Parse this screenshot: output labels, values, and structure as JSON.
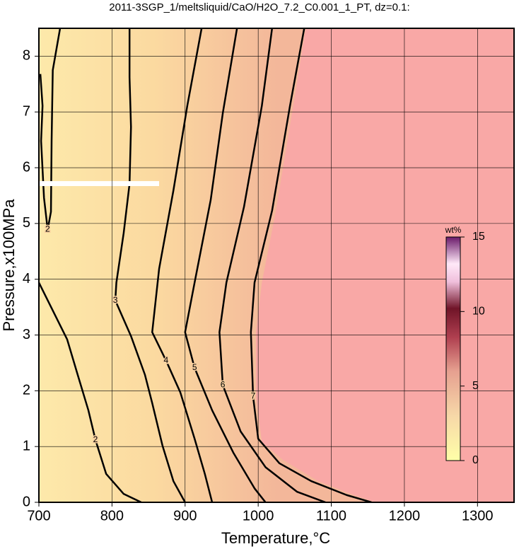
{
  "chart_data": {
    "type": "contour",
    "title": "2011-3SGP_1/meltsliquid/CaO/H2O_7.2_C0.001_1_PT, dz=0.1:",
    "xlabel": "Temperature,°C",
    "ylabel": "Pressure,x100MPa",
    "xlim": [
      700,
      1350
    ],
    "ylim": [
      0,
      8.5
    ],
    "xticks": [
      700,
      800,
      900,
      1000,
      1100,
      1200,
      1300
    ],
    "yticks": [
      0,
      1,
      2,
      3,
      4,
      5,
      6,
      7,
      8
    ],
    "grid": true,
    "line_color": "#000000",
    "fill_color": "#f9a8a6",
    "colorbar": {
      "label": "wt%",
      "lim": [
        0,
        15
      ],
      "ticks": [
        0,
        5,
        10,
        15
      ]
    },
    "fill_boundary": {
      "x": [
        1065,
        1048,
        1024,
        1005,
        997,
        997,
        1005,
        1034,
        1082,
        1131,
        1160
      ],
      "y": [
        8.5,
        7.11,
        5.21,
        3.94,
        3.05,
        1.9,
        1.08,
        0.76,
        0.38,
        0.13,
        0
      ]
    },
    "contours": [
      {
        "level": 2,
        "x": [
          702,
          705,
          703,
          707,
          712,
          716.5,
          717.4,
          719,
          729
        ],
        "y": [
          7.68,
          7.11,
          6.48,
          5.46,
          4.89,
          5.21,
          6.48,
          7.75,
          8.5
        ]
      },
      {
        "level": 2,
        "x": [
          700,
          738.7,
          753,
          767.7,
          777.4,
          792,
          816,
          840
        ],
        "y": [
          3.94,
          2.92,
          2.29,
          1.65,
          1.12,
          0.51,
          0.15,
          0
        ]
      },
      {
        "level": 3,
        "x": [
          824,
          824,
          826,
          824,
          816,
          806,
          804.5,
          826,
          845,
          855,
          869,
          884,
          900
        ],
        "y": [
          8.5,
          7.62,
          6.73,
          5.71,
          4.83,
          3.94,
          3.62,
          2.98,
          2.29,
          1.78,
          1.02,
          0.38,
          0
        ]
      },
      {
        "level": 4,
        "x": [
          922.6,
          903,
          884,
          864.5,
          855,
          874,
          893.5,
          913,
          927,
          937
        ],
        "y": [
          8.5,
          7.11,
          5.59,
          4.19,
          3.05,
          2.54,
          1.97,
          1.14,
          0.51,
          0
        ]
      },
      {
        "level": 5,
        "x": [
          971,
          951.6,
          935,
          913,
          900,
          913,
          937,
          966,
          995,
          1010
        ],
        "y": [
          8.5,
          6.98,
          5.42,
          3.94,
          3.05,
          2.41,
          1.65,
          0.89,
          0.25,
          0
        ]
      },
      {
        "level": 6,
        "x": [
          1019,
          1005,
          980.6,
          956.5,
          947,
          951.6,
          976,
          1010,
          1053,
          1092
        ],
        "y": [
          8.5,
          7.11,
          5.3,
          3.94,
          3.05,
          2.1,
          1.27,
          0.63,
          0.19,
          0
        ]
      },
      {
        "level": 7,
        "x": [
          1063,
          1043.5,
          1019,
          995,
          990,
          993,
          1000,
          1029,
          1072.6,
          1121,
          1155
        ],
        "y": [
          8.5,
          7.11,
          5.23,
          3.94,
          3.05,
          1.9,
          1.14,
          0.7,
          0.38,
          0.13,
          0
        ]
      }
    ]
  }
}
